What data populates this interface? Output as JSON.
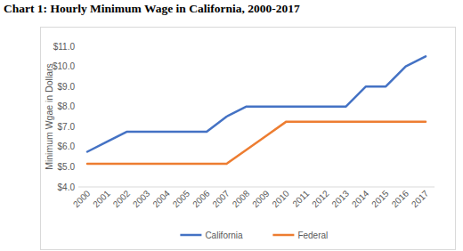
{
  "chart_data": {
    "type": "line",
    "title": "Chart 1: Hourly Minimum Wage in California, 2000-2017",
    "y_label": "Minimum Wgae in Dollars",
    "categories": [
      "2000",
      "2001",
      "2002",
      "2003",
      "2004",
      "2005",
      "2006",
      "2007",
      "2008",
      "2009",
      "2010",
      "2011",
      "2012",
      "2013",
      "2014",
      "2015",
      "2016",
      "2017"
    ],
    "series": [
      {
        "name": "California",
        "color": "#4472c4",
        "values": [
          5.75,
          6.25,
          6.75,
          6.75,
          6.75,
          6.75,
          6.75,
          7.5,
          8.0,
          8.0,
          8.0,
          8.0,
          8.0,
          8.0,
          9.0,
          9.0,
          10.0,
          10.5
        ]
      },
      {
        "name": "Federal",
        "color": "#ed7d31",
        "values": [
          5.15,
          5.15,
          5.15,
          5.15,
          5.15,
          5.15,
          5.15,
          5.15,
          5.85,
          6.55,
          7.25,
          7.25,
          7.25,
          7.25,
          7.25,
          7.25,
          7.25,
          7.25
        ]
      }
    ],
    "ylim": [
      4,
      11
    ],
    "yticks": [
      {
        "value": 4,
        "label": "$4.0"
      },
      {
        "value": 5,
        "label": "$5.0"
      },
      {
        "value": 6,
        "label": "$6.0"
      },
      {
        "value": 7,
        "label": "$7.0"
      },
      {
        "value": 8,
        "label": "$8.0"
      },
      {
        "value": 9,
        "label": "$9.0"
      },
      {
        "value": 10,
        "label": "$10.0"
      },
      {
        "value": 11,
        "label": "$11.0"
      }
    ],
    "grid": false,
    "legend": "bottom"
  }
}
